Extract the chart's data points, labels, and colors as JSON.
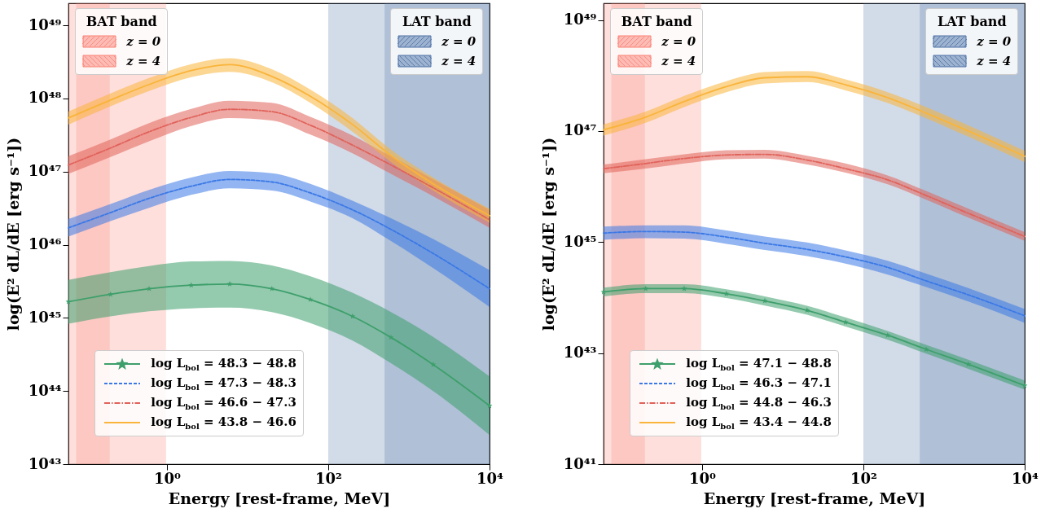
{
  "chart_data": [
    {
      "type": "line",
      "xlabel": "Energy [rest-frame, MeV]",
      "ylabel": "log(E² dL/dE [erg s⁻¹])",
      "log": "xy",
      "legend": "bottom left",
      "x": [
        0.06,
        0.2,
        0.6,
        2,
        6,
        20,
        60,
        200,
        600,
        2000,
        10000
      ],
      "xlim": [
        0.06,
        10000
      ],
      "xticks": [
        {
          "value": 1,
          "label": "10⁰"
        },
        {
          "value": 100,
          "label": "10²"
        },
        {
          "value": 10000,
          "label": "10⁴"
        }
      ],
      "ylim": [
        1e+43,
        2e+49
      ],
      "yticks": [
        {
          "value": 1e+43,
          "label": "10⁴³"
        },
        {
          "value": 1e+44,
          "label": "10⁴⁴"
        },
        {
          "value": 1e+45,
          "label": "10⁴⁵"
        },
        {
          "value": 1e+46,
          "label": "10⁴⁶"
        },
        {
          "value": 1e+47,
          "label": "10⁴⁷"
        },
        {
          "value": 1e+48,
          "label": "10⁴⁸"
        },
        {
          "value": 1e+49,
          "label": "10⁴⁹"
        }
      ],
      "annotations": [
        "BAT band",
        "LAT band"
      ],
      "bands": [
        {
          "axis": "x",
          "from": 0.06,
          "to": 0.195,
          "label": "z = 0",
          "color": "#fa8072"
        },
        {
          "axis": "x",
          "from": 0.075,
          "to": 0.975,
          "label": "z = 4",
          "color": "#fa8072"
        },
        {
          "axis": "x",
          "from": 100,
          "to": 10000,
          "label": "z = 0",
          "color": "#4a6fa5"
        },
        {
          "axis": "x",
          "from": 500,
          "to": 10000,
          "label": "z = 4",
          "color": "#4a6fa5"
        }
      ],
      "series": [
        {
          "name": "log L$_{bol}$ = 48.3 − 48.8",
          "color": "#3d9f6b",
          "line_style": "solid",
          "marker": "star",
          "values": [
            1.66e+45,
            2.1e+45,
            2.5e+45,
            2.8e+45,
            2.9e+45,
            2.5e+45,
            1.78e+45,
            1.05e+45,
            5.4e+44,
            2.3e+44,
            6.3e+43
          ],
          "lower": [
            8.3e+44,
            1.05e+45,
            1.23e+45,
            1.35e+45,
            1.38e+45,
            1.2e+45,
            8.5e+44,
            4.9e+44,
            2.4e+44,
            1e+44,
            2.5e+43
          ],
          "upper": [
            3.3e+45,
            4.2e+45,
            5.1e+45,
            5.9e+45,
            6e+45,
            5.2e+45,
            3.7e+45,
            2.2e+45,
            1.2e+45,
            5.5e+44,
            1.58e+44
          ]
        },
        {
          "name": "log L$_{bol}$ = 47.3 − 48.3",
          "color": "#3a78e6",
          "line_style": "dashed",
          "values": [
            1.7e+46,
            2.75e+46,
            4.3e+46,
            6.3e+46,
            7.8e+46,
            7.2e+46,
            5.1e+46,
            3e+46,
            1.62e+46,
            7.6e+45,
            2.5e+45
          ],
          "lower": [
            1.29e+46,
            2.1e+46,
            3.2e+46,
            4.8e+46,
            5.9e+46,
            5.5e+46,
            3.9e+46,
            2.3e+46,
            1.12e+46,
            4.8e+45,
            1.41e+45
          ],
          "upper": [
            2.24e+46,
            3.6e+46,
            5.6e+46,
            8.3e+46,
            1.02e+47,
            9.5e+46,
            6.8e+46,
            4e+46,
            2.3e+46,
            1.2e+46,
            4.5e+45
          ]
        },
        {
          "name": "log L$_{bol}$ = 46.6 − 47.3",
          "color": "#e0625a",
          "line_style": "dashdot",
          "values": [
            1.23e+47,
            2.1e+47,
            3.5e+47,
            5.5e+47,
            7.1e+47,
            6.6e+47,
            4.3e+47,
            2.3e+47,
            1.23e+47,
            6e+46,
            2.2e+46
          ],
          "lower": [
            9.3e+46,
            1.58e+47,
            2.6e+47,
            4.2e+47,
            5.4e+47,
            5e+47,
            3.2e+47,
            1.78e+47,
            9.3e+46,
            4.6e+46,
            1.7e+46
          ],
          "upper": [
            1.62e+47,
            2.75e+47,
            4.6e+47,
            7.2e+47,
            9.3e+47,
            8.7e+47,
            5.6e+47,
            3.1e+47,
            1.62e+47,
            7.9e+46,
            3e+46
          ]
        },
        {
          "name": "log L$_{bol}$ = 43.8 − 46.6",
          "color": "#f9b43a",
          "line_style": "solid",
          "values": [
            5.4e+47,
            9.5e+47,
            1.55e+48,
            2.4e+48,
            2.9e+48,
            2e+48,
            1.07e+48,
            4.4e+47,
            1.66e+47,
            6.8e+46,
            2.5e+46
          ],
          "lower": [
            4.4e+47,
            7.8e+47,
            1.26e+48,
            1.95e+48,
            2.3e+48,
            1.66e+48,
            8.7e+47,
            3.5e+47,
            1.35e+47,
            5.5e+46,
            2e+46
          ],
          "upper": [
            6.6e+47,
            1.17e+48,
            1.9e+48,
            2.95e+48,
            3.55e+48,
            2.5e+48,
            1.32e+48,
            5.4e+47,
            2e+47,
            8.3e+46,
            3.1e+46
          ]
        }
      ]
    },
    {
      "type": "line",
      "xlabel": "Energy [rest-frame, MeV]",
      "ylabel": "log(E² dL/dE [erg s⁻¹])",
      "log": "xy",
      "legend": "bottom left",
      "x": [
        0.06,
        0.2,
        0.6,
        2,
        6,
        20,
        60,
        200,
        600,
        2000,
        10000
      ],
      "xlim": [
        0.06,
        10000
      ],
      "xticks": [
        {
          "value": 1,
          "label": "10⁰"
        },
        {
          "value": 100,
          "label": "10²"
        },
        {
          "value": 10000,
          "label": "10⁴"
        }
      ],
      "ylim": [
        1e+41,
        2e+49
      ],
      "yticks": [
        {
          "value": 1e+41,
          "label": "10⁴¹"
        },
        {
          "value": 1e+43,
          "label": "10⁴³"
        },
        {
          "value": 1e+45,
          "label": "10⁴⁵"
        },
        {
          "value": 1e+47,
          "label": "10⁴⁷"
        },
        {
          "value": 1e+49,
          "label": "10⁴⁹"
        }
      ],
      "annotations": [
        "BAT band",
        "LAT band"
      ],
      "bands": [
        {
          "axis": "x",
          "from": 0.06,
          "to": 0.195,
          "label": "z = 0",
          "color": "#fa8072"
        },
        {
          "axis": "x",
          "from": 0.075,
          "to": 0.975,
          "label": "z = 4",
          "color": "#fa8072"
        },
        {
          "axis": "x",
          "from": 100,
          "to": 10000,
          "label": "z = 0",
          "color": "#4a6fa5"
        },
        {
          "axis": "x",
          "from": 500,
          "to": 10000,
          "label": "z = 4",
          "color": "#4a6fa5"
        }
      ],
      "series": [
        {
          "name": "log L$_{bol}$ = 47.1 − 48.8",
          "color": "#3d9f6b",
          "line_style": "solid",
          "marker": "star",
          "values": [
            1.26e+44,
            1.45e+44,
            1.45e+44,
            1.17e+44,
            8.7e+43,
            5.9e+43,
            3.6e+43,
            2.1e+43,
            1.17e+43,
            6.3e+42,
            2.6e+42
          ],
          "lower": [
            1.05e+44,
            1.2e+44,
            1.2e+44,
            9.8e+43,
            7.2e+43,
            4.9e+43,
            3e+43,
            1.74e+43,
            9.8e+42,
            5.2e+42,
            2.2e+42
          ],
          "upper": [
            1.51e+44,
            1.74e+44,
            1.74e+44,
            1.41e+44,
            1.05e+44,
            7.1e+43,
            4.4e+43,
            2.5e+43,
            1.41e+43,
            7.6e+42,
            3.2e+42
          ]
        },
        {
          "name": "log L$_{bol}$ = 46.3 − 47.1",
          "color": "#3a78e6",
          "line_style": "dashed",
          "values": [
            1.45e+45,
            1.55e+45,
            1.51e+45,
            1.23e+45,
            9.5e+44,
            7.4e+44,
            5.4e+44,
            3.5e+44,
            2e+44,
            1.12e+44,
            4.7e+43
          ],
          "lower": [
            1.1e+45,
            1.17e+45,
            1.15e+45,
            9.3e+44,
            7.2e+44,
            5.6e+44,
            4.1e+44,
            2.6e+44,
            1.55e+44,
            8.5e+43,
            3.5e+43
          ],
          "upper": [
            1.9e+45,
            2e+45,
            2e+45,
            1.62e+45,
            1.26e+45,
            9.8e+44,
            7.1e+44,
            4.6e+44,
            2.7e+44,
            1.48e+44,
            6.2e+43
          ]
        },
        {
          "name": "log L$_{bol}$ = 44.8 − 46.3",
          "color": "#e0625a",
          "line_style": "dashdot",
          "values": [
            2.1e+46,
            2.6e+46,
            3.2e+46,
            3.7e+46,
            3.8e+46,
            3e+46,
            2.1e+46,
            1.32e+46,
            6.9e+45,
            3.3e+45,
            1.26e+45
          ],
          "lower": [
            1.74e+46,
            2.1e+46,
            2.6e+46,
            3.1e+46,
            3.2e+46,
            2.5e+46,
            1.78e+46,
            1.1e+46,
            5.8e+45,
            2.75e+45,
            1.05e+45
          ],
          "upper": [
            2.5e+46,
            3.1e+46,
            3.8e+46,
            4.5e+46,
            4.6e+46,
            3.6e+46,
            2.6e+46,
            1.58e+46,
            8.3e+45,
            4e+45,
            1.51e+45
          ]
        },
        {
          "name": "log L$_{bol}$ = 43.4 − 44.8",
          "color": "#f9b43a",
          "line_style": "solid",
          "values": [
            1.05e+47,
            1.78e+47,
            3.4e+47,
            6.3e+47,
            9.1e+47,
            9.5e+47,
            6.8e+47,
            4e+47,
            2.1e+47,
            1e+47,
            3.5e+46
          ],
          "lower": [
            8.3e+46,
            1.41e+47,
            2.7e+47,
            5e+47,
            7.2e+47,
            7.6e+47,
            5.4e+47,
            3.2e+47,
            1.7e+47,
            7.9e+46,
            2.75e+46
          ],
          "upper": [
            1.32e+47,
            2.24e+47,
            4.3e+47,
            7.9e+47,
            1.15e+48,
            1.2e+48,
            8.5e+47,
            5e+47,
            2.7e+47,
            1.26e+47,
            4.4e+46
          ]
        }
      ]
    }
  ]
}
